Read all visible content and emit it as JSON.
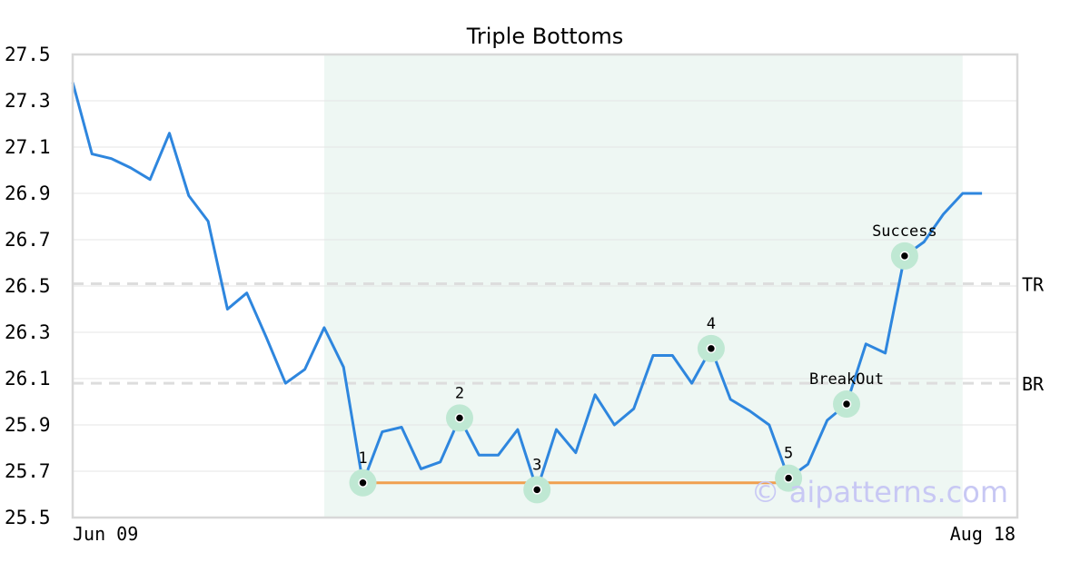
{
  "chart_data": {
    "type": "line",
    "title": "Triple Bottoms",
    "xlabel": "",
    "ylabel": "",
    "x_tick_labels": [
      "Jun 09",
      "Aug 18"
    ],
    "y_ticks": [
      "27.5",
      "27.3",
      "27.1",
      "26.9",
      "26.7",
      "26.5",
      "26.3",
      "26.1",
      "25.9",
      "25.7",
      "25.5"
    ],
    "ylim": [
      25.5,
      27.5
    ],
    "grid": "horizontal",
    "series": [
      {
        "color": "#2e86de",
        "values": [
          27.38,
          27.07,
          27.05,
          27.01,
          26.96,
          27.16,
          26.89,
          26.78,
          26.4,
          26.47,
          26.28,
          26.08,
          26.14,
          26.32,
          26.15,
          25.65,
          25.87,
          25.89,
          25.71,
          25.74,
          25.93,
          25.77,
          25.77,
          25.88,
          25.62,
          25.88,
          25.78,
          26.03,
          25.9,
          25.97,
          26.2,
          26.2,
          26.08,
          26.23,
          26.01,
          25.96,
          25.9,
          25.67,
          25.73,
          25.92,
          25.99,
          26.25,
          26.21,
          26.63,
          26.69,
          26.81,
          26.9,
          26.9
        ]
      }
    ],
    "highlight_region": {
      "start_index": 13,
      "end_index": 46,
      "color": "#eef7f3"
    },
    "levels": [
      {
        "label": "TR",
        "value": 26.51
      },
      {
        "label": "BR",
        "value": 26.08
      }
    ],
    "support_line": {
      "value": 25.65,
      "start_index": 15,
      "end_index": 37,
      "color": "#f0a050"
    },
    "annotations": [
      {
        "label": "1",
        "index": 15,
        "value": 25.65
      },
      {
        "label": "2",
        "index": 20,
        "value": 25.93
      },
      {
        "label": "3",
        "index": 24,
        "value": 25.62
      },
      {
        "label": "4",
        "index": 33,
        "value": 26.23
      },
      {
        "label": "5",
        "index": 37,
        "value": 25.67
      },
      {
        "label": "BreakOut",
        "index": 40,
        "value": 25.99
      },
      {
        "label": "Success",
        "index": 43,
        "value": 26.63
      }
    ],
    "watermark": "© aipatterns.com"
  }
}
